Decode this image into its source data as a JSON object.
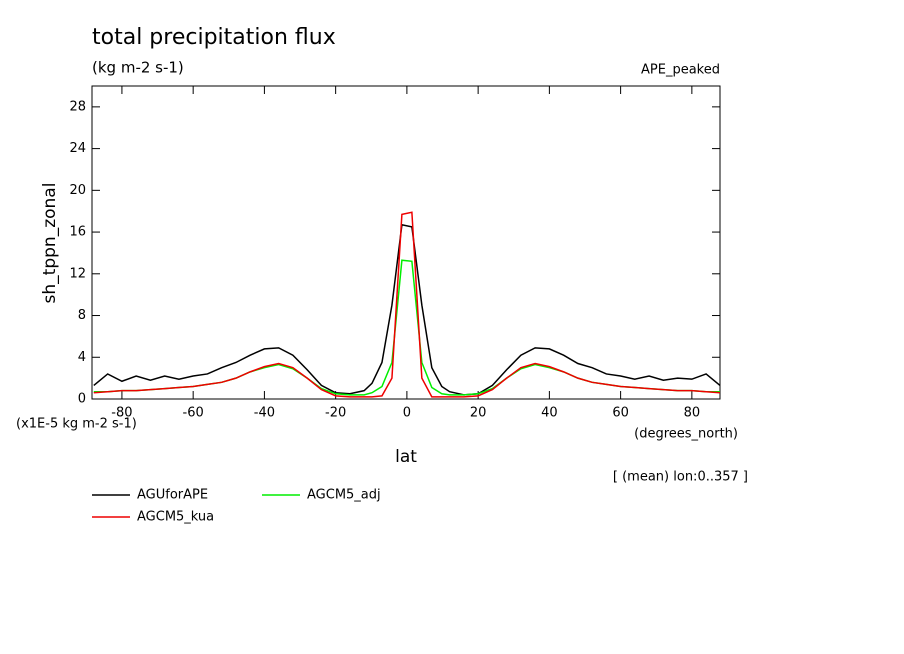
{
  "chart_data": {
    "type": "line",
    "title": "total precipitation flux",
    "subtitle": "(kg m-2 s-1)",
    "annotation_right": "APE_peaked",
    "y_label": "sh_tppn_zonal",
    "y_units": "(x1E-5 kg m-2 s-1)",
    "x_label": "lat",
    "x_units": "(degrees_north)",
    "note": "[ (mean) lon:0..357 ]",
    "x": [
      -87.9,
      -84,
      -80,
      -76,
      -72,
      -68,
      -64,
      -60,
      -56,
      -52,
      -48,
      -44,
      -40,
      -36,
      -32,
      -28,
      -24,
      -20,
      -16,
      -12,
      -9.8,
      -7,
      -4.2,
      -1.4,
      1.4,
      4.2,
      7,
      9.8,
      12,
      16,
      20,
      24,
      28,
      32,
      36,
      40,
      44,
      48,
      52,
      56,
      60,
      64,
      68,
      72,
      76,
      80,
      84,
      87.9
    ],
    "series": [
      {
        "name": "AGUforAPE",
        "color": "#000000",
        "values": [
          1.3,
          2.4,
          1.7,
          2.2,
          1.8,
          2.2,
          1.9,
          2.2,
          2.4,
          3.0,
          3.5,
          4.2,
          4.8,
          4.9,
          4.2,
          2.8,
          1.3,
          0.6,
          0.5,
          0.8,
          1.5,
          3.5,
          9.0,
          16.7,
          16.5,
          9.0,
          3.0,
          1.2,
          0.7,
          0.4,
          0.5,
          1.3,
          2.8,
          4.2,
          4.9,
          4.8,
          4.2,
          3.4,
          3.0,
          2.4,
          2.2,
          1.9,
          2.2,
          1.8,
          2.0,
          1.9,
          2.4,
          1.3
        ]
      },
      {
        "name": "AGCM5_adj",
        "color": "#00ee00",
        "values": [
          0.7,
          0.7,
          0.8,
          0.8,
          0.9,
          1.0,
          1.1,
          1.2,
          1.4,
          1.6,
          2.0,
          2.6,
          3.0,
          3.3,
          2.9,
          2.0,
          1.0,
          0.5,
          0.4,
          0.4,
          0.6,
          1.2,
          3.5,
          13.3,
          13.2,
          3.5,
          1.1,
          0.5,
          0.4,
          0.4,
          0.5,
          1.0,
          2.0,
          2.9,
          3.3,
          3.0,
          2.6,
          2.0,
          1.6,
          1.4,
          1.2,
          1.1,
          1.0,
          0.9,
          0.8,
          0.8,
          0.7,
          0.7
        ]
      },
      {
        "name": "AGCM5_kua",
        "color": "#ee0000",
        "values": [
          0.6,
          0.7,
          0.8,
          0.8,
          0.9,
          1.0,
          1.1,
          1.2,
          1.4,
          1.6,
          2.0,
          2.6,
          3.1,
          3.4,
          3.0,
          2.0,
          0.9,
          0.3,
          0.2,
          0.2,
          0.2,
          0.3,
          2.0,
          17.7,
          17.9,
          2.0,
          0.2,
          0.2,
          0.2,
          0.2,
          0.3,
          0.9,
          2.0,
          3.0,
          3.4,
          3.1,
          2.6,
          2.0,
          1.6,
          1.4,
          1.2,
          1.1,
          1.0,
          0.9,
          0.8,
          0.8,
          0.7,
          0.6
        ]
      }
    ],
    "xlim": [
      -88.4,
      87.9
    ],
    "ylim": [
      0,
      30
    ],
    "xticks": [
      -80,
      -60,
      -40,
      -20,
      0,
      20,
      40,
      60,
      80
    ],
    "yticks": [
      0,
      4,
      8,
      12,
      16,
      20,
      24,
      28
    ]
  }
}
